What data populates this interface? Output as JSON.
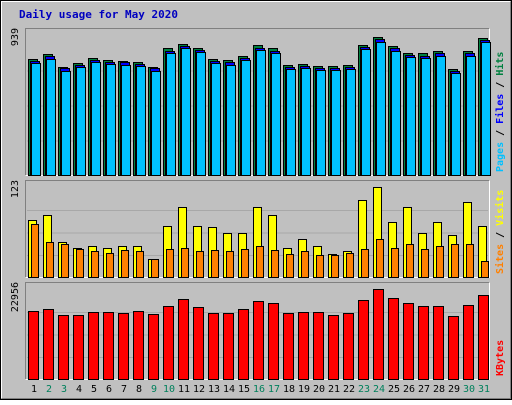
{
  "chart_data": [
    {
      "type": "bar",
      "title": "Daily usage for May 2020",
      "categories": [
        "1",
        "2",
        "3",
        "4",
        "5",
        "6",
        "7",
        "8",
        "9",
        "10",
        "11",
        "12",
        "13",
        "14",
        "15",
        "16",
        "17",
        "18",
        "19",
        "20",
        "21",
        "22",
        "23",
        "24",
        "25",
        "26",
        "27",
        "28",
        "29",
        "30",
        "31"
      ],
      "weekend_days": [
        "2",
        "3",
        "9",
        "10",
        "16",
        "17",
        "23",
        "24",
        "30",
        "31"
      ],
      "ymax_label": "939",
      "ylim": [
        0,
        939
      ],
      "series": [
        {
          "name": "Hits",
          "color": "#008040",
          "values": [
            775,
            810,
            725,
            750,
            785,
            770,
            765,
            755,
            725,
            850,
            880,
            855,
            780,
            770,
            800,
            870,
            850,
            735,
            745,
            730,
            730,
            735,
            875,
            925,
            865,
            820,
            815,
            830,
            710,
            830,
            920
          ]
        },
        {
          "name": "Files",
          "color": "#0000ff",
          "values": [
            765,
            795,
            715,
            740,
            770,
            760,
            755,
            745,
            715,
            835,
            865,
            840,
            765,
            755,
            785,
            855,
            835,
            725,
            730,
            720,
            720,
            725,
            860,
            910,
            850,
            805,
            800,
            815,
            700,
            815,
            905
          ]
        },
        {
          "name": "Pages",
          "color": "#00c0ff",
          "values": [
            750,
            780,
            700,
            725,
            760,
            745,
            740,
            730,
            700,
            820,
            850,
            825,
            750,
            740,
            770,
            840,
            820,
            710,
            715,
            705,
            705,
            710,
            845,
            895,
            835,
            790,
            785,
            800,
            685,
            800,
            890
          ]
        }
      ]
    },
    {
      "type": "bar",
      "categories": [
        "1",
        "2",
        "3",
        "4",
        "5",
        "6",
        "7",
        "8",
        "9",
        "10",
        "11",
        "12",
        "13",
        "14",
        "15",
        "16",
        "17",
        "18",
        "19",
        "20",
        "21",
        "22",
        "23",
        "24",
        "25",
        "26",
        "27",
        "28",
        "29",
        "30",
        "31"
      ],
      "ymax_label": "123",
      "ylim": [
        0,
        123
      ],
      "series": [
        {
          "name": "Visits",
          "color": "#ffff00",
          "values": [
            78,
            85,
            48,
            40,
            43,
            39,
            43,
            43,
            25,
            70,
            95,
            70,
            68,
            60,
            60,
            95,
            85,
            39,
            52,
            42,
            32,
            35,
            105,
            123,
            75,
            95,
            60,
            75,
            57,
            102,
            70
          ]
        },
        {
          "name": "Sites",
          "color": "#ff8000",
          "values": [
            72,
            48,
            45,
            38,
            36,
            33,
            37,
            36,
            24,
            38,
            40,
            35,
            37,
            35,
            38,
            43,
            37,
            32,
            36,
            30,
            30,
            33,
            38,
            52,
            40,
            45,
            38,
            43,
            45,
            45,
            22
          ]
        }
      ]
    },
    {
      "type": "bar",
      "categories": [
        "1",
        "2",
        "3",
        "4",
        "5",
        "6",
        "7",
        "8",
        "9",
        "10",
        "11",
        "12",
        "13",
        "14",
        "15",
        "16",
        "17",
        "18",
        "19",
        "20",
        "21",
        "22",
        "23",
        "24",
        "25",
        "26",
        "27",
        "28",
        "29",
        "30",
        "31"
      ],
      "ymax_label": "22956",
      "ylim": [
        0,
        22956
      ],
      "series": [
        {
          "name": "KBytes",
          "color": "#ff0000",
          "values": [
            17400,
            17900,
            16300,
            16300,
            17100,
            17000,
            16800,
            17300,
            16500,
            18600,
            20500,
            18400,
            16800,
            16800,
            17800,
            19900,
            19300,
            16900,
            17200,
            17000,
            16200,
            16800,
            20200,
            22956,
            20600,
            19300,
            18600,
            18600,
            16100,
            18900,
            21400
          ]
        }
      ]
    }
  ]
}
